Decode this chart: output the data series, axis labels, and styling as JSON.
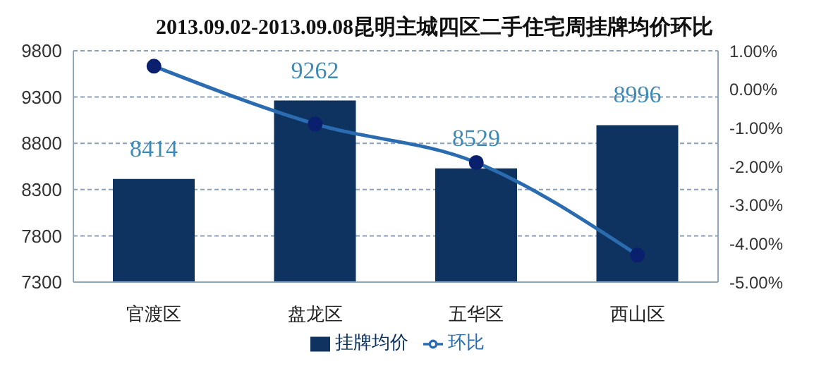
{
  "chart_data": {
    "type": "bar",
    "title": "2013.09.02-2013.09.08昆明主城四区二手住宅周挂牌均价环比",
    "categories": [
      "官渡区",
      "盘龙区",
      "五华区",
      "西山区"
    ],
    "series": [
      {
        "name": "挂牌均价",
        "color": "#0e3361",
        "values": [
          8414,
          9262,
          8529,
          8996
        ],
        "value_labels": [
          "8414",
          "9262",
          "8529",
          "8996"
        ]
      },
      {
        "name": "环比",
        "type": "line",
        "axis": "y2",
        "color": "#2b6cb0",
        "values": [
          0.6,
          -0.9,
          -1.9,
          -4.3
        ]
      }
    ],
    "ylim": [
      7300,
      9800
    ],
    "yticks": [
      7300,
      7800,
      8300,
      8800,
      9300,
      9800
    ],
    "y2lim": [
      -5,
      1
    ],
    "y2ticks": [
      {
        "value": 1,
        "label": "1.00%"
      },
      {
        "value": 0,
        "label": "0.00%"
      },
      {
        "value": -1,
        "label": "-1.00%"
      },
      {
        "value": -2,
        "label": "-2.00%"
      },
      {
        "value": -3,
        "label": "-3.00%"
      },
      {
        "value": -4,
        "label": "-4.00%"
      },
      {
        "value": -5,
        "label": "-5.00%"
      }
    ],
    "grid": "y",
    "legend": "bottom",
    "marker": "circle"
  }
}
